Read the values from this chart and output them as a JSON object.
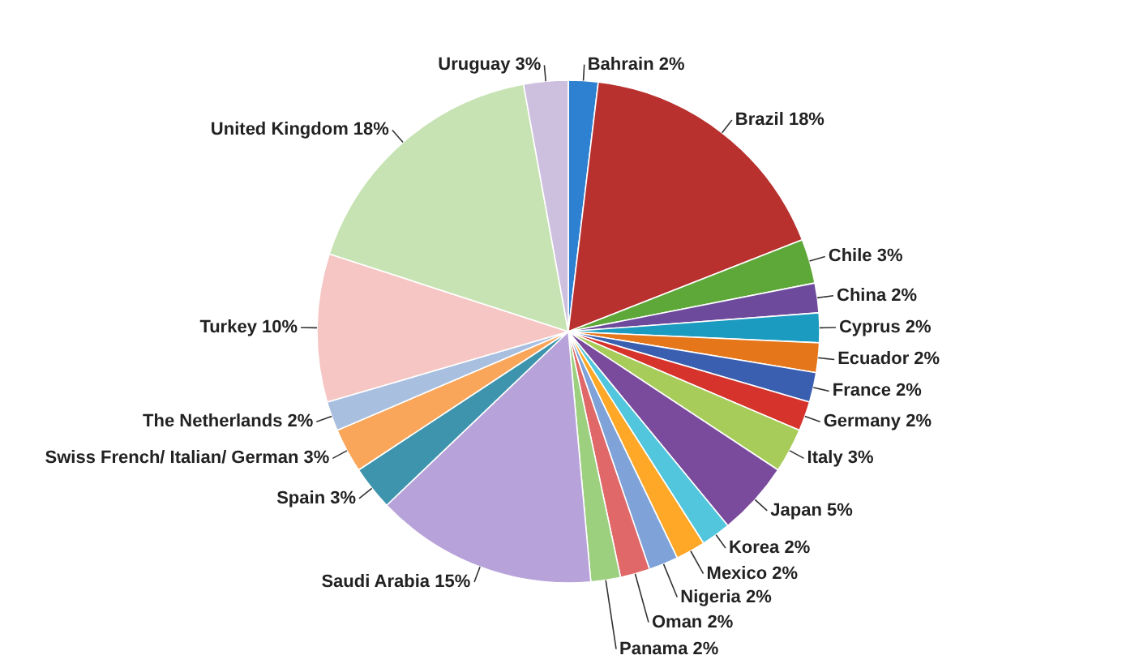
{
  "chart_data": {
    "type": "pie",
    "categories": [
      "Bahrain",
      "Brazil",
      "Chile",
      "China",
      "Cyprus",
      "Ecuador",
      "France",
      "Germany",
      "Italy",
      "Japan",
      "Korea",
      "Mexico",
      "Nigeria",
      "Oman",
      "Panama",
      "Saudi Arabia",
      "Spain",
      "Swiss French/ Italian/ German",
      "The Netherlands",
      "Turkey",
      "United Kingdom",
      "Uruguay"
    ],
    "values": [
      2,
      18,
      3,
      2,
      2,
      2,
      2,
      2,
      3,
      5,
      2,
      2,
      2,
      2,
      2,
      15,
      3,
      3,
      2,
      10,
      18,
      3
    ],
    "value_labels": [
      "2%",
      "18%",
      "3%",
      "2%",
      "2%",
      "2%",
      "2%",
      "2%",
      "3%",
      "5%",
      "2%",
      "2%",
      "2%",
      "2%",
      "2%",
      "15%",
      "3%",
      "3%",
      "2%",
      "10%",
      "18%",
      "3%"
    ],
    "colors": [
      "#2e80d0",
      "#b8312f",
      "#5ea83a",
      "#6d4a9c",
      "#1a9bbf",
      "#e5761a",
      "#3a5fb0",
      "#d6332c",
      "#a8cc5a",
      "#7a4a9c",
      "#52c6dc",
      "#ffa726",
      "#7fa3d8",
      "#e06868",
      "#9ccf7e",
      "#b7a3d9",
      "#3f94ad",
      "#f9a65a",
      "#a9bfe0",
      "#f5c6c3",
      "#c7e3b3",
      "#cdc0df"
    ]
  }
}
